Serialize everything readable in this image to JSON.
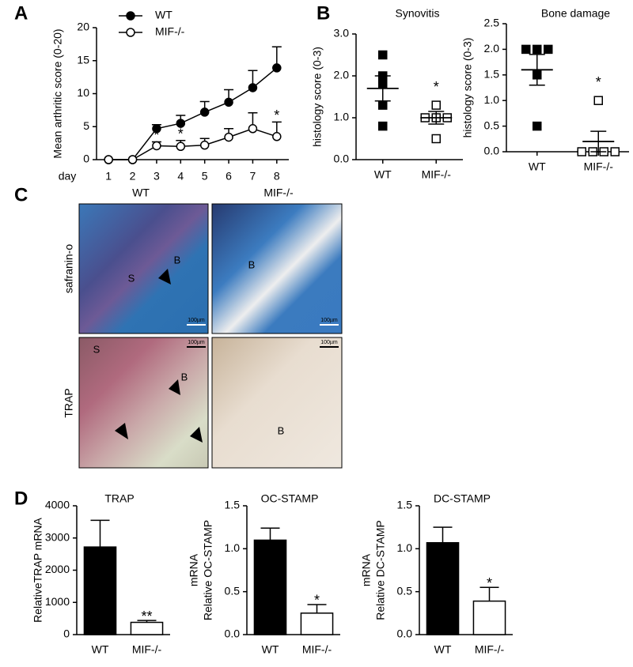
{
  "panel_labels": [
    "A",
    "B",
    "C",
    "D"
  ],
  "chart_data": [
    {
      "type": "line",
      "xlabel": "day",
      "ylabel": "Mean arthritic score (0-20)",
      "x": [
        1,
        2,
        3,
        4,
        5,
        6,
        7,
        8
      ],
      "xlim": [
        0.5,
        8.5
      ],
      "xticks": [
        1,
        2,
        3,
        4,
        5,
        6,
        7,
        8
      ],
      "ylim": [
        0,
        20
      ],
      "yticks": [
        0,
        5,
        10,
        15,
        20
      ],
      "series": [
        {
          "name": "WT",
          "marker": "filled",
          "color": "#000000",
          "values": [
            0,
            0,
            4.7,
            5.5,
            7.2,
            8.7,
            10.9,
            13.9
          ],
          "errors": [
            null,
            null,
            0.6,
            1.2,
            1.6,
            1.9,
            2.6,
            3.2
          ]
        },
        {
          "name": "MIF-/-",
          "marker": "open",
          "color": "#000000",
          "values": [
            0,
            0,
            2.1,
            2.0,
            2.2,
            3.4,
            4.7,
            3.5
          ],
          "errors": [
            null,
            null,
            0.6,
            0.9,
            1.0,
            1.3,
            2.4,
            2.2
          ]
        }
      ],
      "annotations": [
        {
          "x": 3,
          "text": "*"
        },
        {
          "x": 4,
          "text": "*"
        },
        {
          "x": 8,
          "text": "*"
        }
      ]
    },
    {
      "type": "dot",
      "title": "Synovitis",
      "ylabel": "histology score (0-3)",
      "ylim": [
        0,
        3
      ],
      "yticks": [
        {
          "value": 0,
          "label": "0.0"
        },
        {
          "value": 1,
          "label": "1.0"
        },
        {
          "value": 2,
          "label": "2.0"
        },
        {
          "value": 3,
          "label": "3.0"
        }
      ],
      "series": [
        {
          "name": "WT",
          "marker": "filled",
          "values": [
            2.5,
            2.0,
            1.8,
            1.3,
            0.8
          ],
          "mean": 1.7,
          "sem": 0.3
        },
        {
          "name": "MIF-/-",
          "marker": "open",
          "values": [
            1.0,
            1.0,
            1.0,
            1.3,
            0.5
          ],
          "mean": 1.0,
          "sem": 0.15
        }
      ],
      "annotation": "*"
    },
    {
      "type": "dot",
      "title": "Bone damage",
      "ylabel": "histology score (0-3)",
      "ylim": [
        0,
        2.5
      ],
      "yticks": [
        {
          "value": 0,
          "label": "0.0"
        },
        {
          "value": 0.5,
          "label": "0.5"
        },
        {
          "value": 1,
          "label": "1.0"
        },
        {
          "value": 1.5,
          "label": "1.5"
        },
        {
          "value": 2,
          "label": "2.0"
        },
        {
          "value": 2.5,
          "label": "2.5"
        }
      ],
      "series": [
        {
          "name": "WT",
          "marker": "filled",
          "values": [
            2.0,
            2.0,
            2.0,
            1.5,
            0.5
          ],
          "mean": 1.6,
          "sem": 0.3
        },
        {
          "name": "MIF-/-",
          "marker": "open",
          "values": [
            1.0,
            0,
            0,
            0,
            0
          ],
          "mean": 0.2,
          "sem": 0.2
        }
      ],
      "annotation": "*"
    },
    {
      "type": "bar",
      "title": "TRAP",
      "ylabel": [
        "RelativeTRAP mRNA"
      ],
      "categories": [
        "WT",
        "MIF-/-"
      ],
      "values": [
        2720,
        380
      ],
      "errors": [
        830,
        60
      ],
      "colors": [
        "#000000",
        "#ffffff"
      ],
      "ylim": [
        0,
        4000
      ],
      "yticks": [
        0,
        1000,
        2000,
        3000,
        4000
      ],
      "annotation": "**"
    },
    {
      "type": "bar",
      "title": "OC-STAMP",
      "ylabel": [
        "Relative OC-STAMP",
        "mRNA"
      ],
      "categories": [
        "WT",
        "MIF-/-"
      ],
      "values": [
        1.1,
        0.25
      ],
      "errors": [
        0.14,
        0.1
      ],
      "colors": [
        "#000000",
        "#ffffff"
      ],
      "ylim": [
        0,
        1.5
      ],
      "yticks": [
        {
          "value": 0,
          "label": "0.0"
        },
        {
          "value": 0.5,
          "label": "0.5"
        },
        {
          "value": 1,
          "label": "1.0"
        },
        {
          "value": 1.5,
          "label": "1.5"
        }
      ],
      "annotation": "*"
    },
    {
      "type": "bar",
      "title": "DC-STAMP",
      "ylabel": [
        "Relative DC-STAMP",
        "mRNA"
      ],
      "categories": [
        "WT",
        "MIF-/-"
      ],
      "values": [
        1.07,
        0.39
      ],
      "errors": [
        0.18,
        0.16
      ],
      "colors": [
        "#000000",
        "#ffffff"
      ],
      "ylim": [
        0,
        1.5
      ],
      "yticks": [
        {
          "value": 0,
          "label": "0.0"
        },
        {
          "value": 0.5,
          "label": "0.5"
        },
        {
          "value": 1,
          "label": "1.0"
        },
        {
          "value": 1.5,
          "label": "1.5"
        }
      ],
      "annotation": "*"
    }
  ],
  "histology": {
    "columns": [
      "WT",
      "MIF-/-"
    ],
    "rows": [
      "safranin-o",
      "TRAP"
    ],
    "scale_bar": "100µm",
    "tissue_labels": [
      "S",
      "B",
      "B",
      "S",
      "B",
      "B"
    ]
  }
}
